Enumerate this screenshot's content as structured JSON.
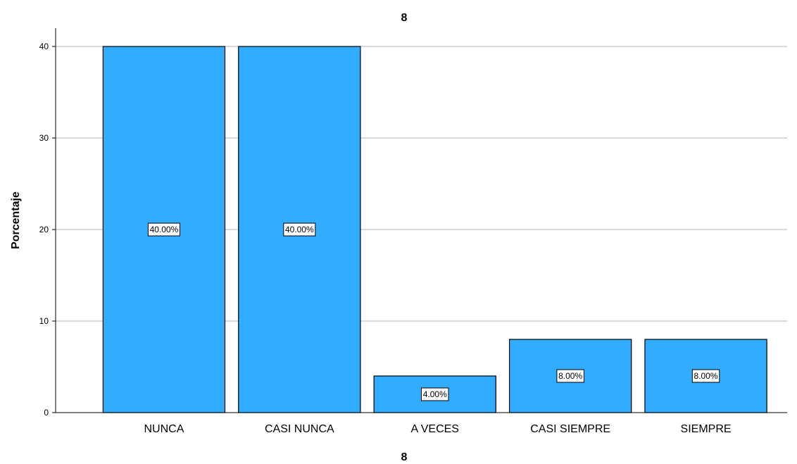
{
  "chart_data": {
    "type": "bar",
    "title": "8",
    "xlabel": "8",
    "ylabel": "Porcentaje",
    "categories": [
      "NUNCA",
      "CASI NUNCA",
      "A VECES",
      "CASI SIEMPRE",
      "SIEMPRE"
    ],
    "values": [
      40,
      40,
      4,
      8,
      8
    ],
    "data_labels": [
      "40.00%",
      "40.00%",
      "4.00%",
      "8.00%",
      "8.00%"
    ],
    "ylim": [
      0,
      42
    ],
    "yticks": [
      0,
      10,
      20,
      30,
      40
    ],
    "grid": "horizontal",
    "legend": "none",
    "colors": {
      "bar": "#31acfe",
      "bar_edge": "#000000",
      "grid": "#b3b3b3",
      "axis": "#000000"
    }
  }
}
